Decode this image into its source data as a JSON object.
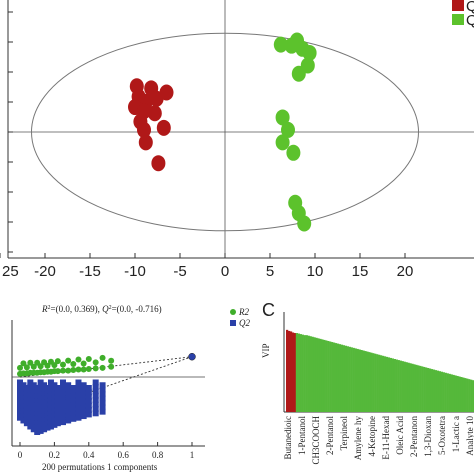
{
  "chart_data": [
    {
      "type": "scatter",
      "panel": "A",
      "x_ticks": [
        "25",
        "-20",
        "-15",
        "-10",
        "-5",
        "0",
        "5",
        "10",
        "15",
        "20"
      ],
      "xlim": [
        -25,
        23
      ],
      "legend": {
        "placement": "top-right",
        "entries": [
          "Q",
          "Q"
        ]
      },
      "colors": {
        "group1": "#b01818",
        "group2": "#5cc22c"
      },
      "ellipse": {
        "center": [
          0,
          0
        ],
        "semi_axes": [
          21.5,
          9.5
        ]
      },
      "series": [
        {
          "x": [
            -9.8,
            -8.2,
            -6.5,
            -9.6,
            -8.8,
            -7.6,
            -10.0,
            -9.0,
            -7.8,
            -9.4,
            -6.8,
            -9.0,
            -8.8,
            -7.4
          ],
          "y": [
            4.4,
            4.2,
            3.8,
            3.4,
            2.9,
            3.2,
            2.4,
            2.0,
            1.8,
            1.0,
            0.4,
            0.2,
            -1.0,
            -3.0
          ]
        },
        {
          "x": [
            8.0,
            6.2,
            7.4,
            8.6,
            9.4,
            9.2,
            8.2,
            6.4,
            7.0,
            6.4,
            7.6,
            7.8,
            8.2,
            8.8
          ],
          "y": [
            8.8,
            8.4,
            8.3,
            8.0,
            7.6,
            6.4,
            5.6,
            1.4,
            0.2,
            -1.0,
            -2.0,
            -6.8,
            -7.8,
            -8.8
          ]
        }
      ]
    },
    {
      "type": "scatter",
      "panel": "B",
      "title": "R²=(0.0, 0.369), Q²=(0.0, -0.716)",
      "title_parts": [
        "R",
        "2",
        "=(0.0, 0.369), ",
        "Q",
        "2",
        "=(0.0, -0.716)"
      ],
      "xlabel": "200 permutations 1 components",
      "x_ticks": [
        "0",
        "0.2",
        "0.4",
        "0.6",
        "0.8",
        "1"
      ],
      "xlim": [
        -0.1,
        1.0
      ],
      "legend": {
        "placement": "top-right",
        "entries": [
          "R2",
          "Q2"
        ]
      },
      "colors": {
        "r2": "#3fae2a",
        "q2": "#2a40a8"
      },
      "r2_fit": {
        "intercept": 0.0,
        "y_at_1": 0.369
      },
      "q2_fit": {
        "intercept": -0.716,
        "y_at_1": 0.369
      },
      "series": [
        {
          "name": "R2",
          "x": [
            0.0,
            0.02,
            0.04,
            0.06,
            0.08,
            0.1,
            0.12,
            0.14,
            0.16,
            0.18,
            0.2,
            0.22,
            0.25,
            0.28,
            0.31,
            0.34,
            0.37,
            0.4,
            0.44,
            0.48,
            0.53,
            1.0
          ],
          "y": [
            0.02,
            0.03,
            0.03,
            0.04,
            0.04,
            0.04,
            0.05,
            0.05,
            0.06,
            0.06,
            0.07,
            0.07,
            0.08,
            0.08,
            0.09,
            0.1,
            0.1,
            0.11,
            0.12,
            0.13,
            0.15,
            0.369
          ]
        },
        {
          "name": "Q2",
          "x": [
            0.0,
            0.02,
            0.04,
            0.06,
            0.08,
            0.1,
            0.12,
            0.14,
            0.16,
            0.18,
            0.2,
            0.22,
            0.25,
            0.28,
            0.31,
            0.34,
            0.37,
            0.4,
            0.44,
            0.48,
            1.0
          ],
          "y": [
            -0.8,
            -0.85,
            -0.9,
            -0.95,
            -1.0,
            -1.0,
            -0.98,
            -0.95,
            -0.92,
            -0.9,
            -0.9,
            -0.85,
            -0.82,
            -0.8,
            -0.78,
            -0.76,
            -0.74,
            -0.7,
            -0.72,
            -0.68,
            0.369
          ]
        }
      ]
    },
    {
      "type": "bar",
      "panel": "C",
      "panel_letter": "C",
      "ylabel": "VIP",
      "colors": {
        "highlight": "#b01818",
        "bars": "#55b83a"
      },
      "highlight_count": 5,
      "x_labels": [
        "Butanedioic",
        "1-Pentanol",
        "CH3COOCH",
        "2-Pentanol",
        "Terpineol",
        "Amylene hy",
        "4-Ketopine",
        "E-11-Hexad",
        "Oleic Acid",
        "2-Pentanon",
        "1,3-Dioxan",
        "5-Oxotetra",
        "1-Lactic a",
        "Analyte 10"
      ],
      "values": [
        1.55,
        1.53,
        1.52,
        1.5,
        1.49,
        1.49,
        1.48,
        1.47,
        1.46,
        1.45,
        1.45,
        1.44,
        1.43,
        1.42,
        1.41,
        1.4,
        1.39,
        1.38,
        1.37,
        1.36,
        1.35,
        1.34,
        1.33,
        1.32,
        1.31,
        1.3,
        1.29,
        1.28,
        1.27,
        1.26,
        1.25,
        1.24,
        1.23,
        1.22,
        1.21,
        1.2,
        1.19,
        1.18,
        1.17,
        1.16,
        1.15,
        1.14,
        1.13,
        1.12,
        1.11,
        1.1,
        1.09,
        1.08,
        1.07,
        1.06,
        1.05,
        1.04,
        1.03,
        1.02,
        1.01,
        1.0,
        0.99,
        0.98,
        0.97,
        0.96,
        0.95,
        0.94,
        0.93,
        0.92,
        0.91,
        0.9,
        0.89,
        0.88,
        0.87,
        0.86,
        0.85,
        0.84,
        0.83,
        0.82,
        0.81,
        0.8,
        0.79,
        0.78,
        0.77,
        0.76,
        0.75,
        0.74,
        0.73,
        0.72,
        0.71,
        0.7,
        0.69,
        0.68,
        0.67,
        0.66,
        0.65,
        0.64,
        0.63,
        0.62,
        0.61,
        0.6
      ]
    }
  ]
}
